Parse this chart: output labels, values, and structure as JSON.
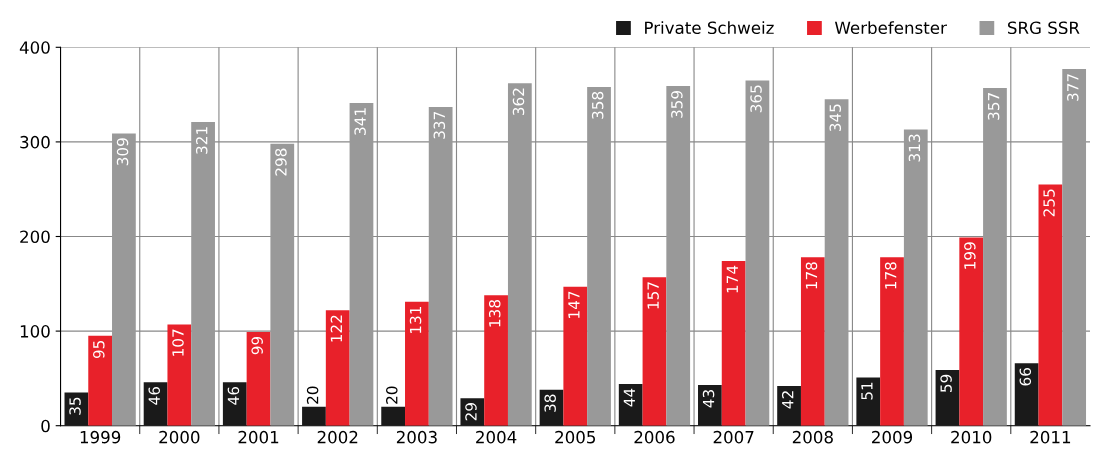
{
  "chart_data": {
    "type": "bar",
    "categories": [
      "1999",
      "2000",
      "2001",
      "2002",
      "2003",
      "2004",
      "2005",
      "2006",
      "2007",
      "2008",
      "2009",
      "2010",
      "2011"
    ],
    "series": [
      {
        "name": "Private Schweiz",
        "color": "#1a1a1a",
        "values": [
          35,
          46,
          46,
          20,
          20,
          29,
          38,
          44,
          43,
          42,
          51,
          59,
          66
        ]
      },
      {
        "name": "Werbefenster",
        "color": "#e8212a",
        "values": [
          95,
          107,
          99,
          122,
          131,
          138,
          147,
          157,
          174,
          178,
          178,
          199,
          255
        ]
      },
      {
        "name": "SRG SSR",
        "color": "#999999",
        "values": [
          309,
          321,
          298,
          341,
          337,
          362,
          358,
          359,
          365,
          345,
          313,
          357,
          377
        ]
      }
    ],
    "ylim": [
      0,
      400
    ],
    "yticks": [
      0,
      100,
      200,
      300,
      400
    ],
    "grid": true,
    "legend": "top right",
    "data_labels": true
  }
}
